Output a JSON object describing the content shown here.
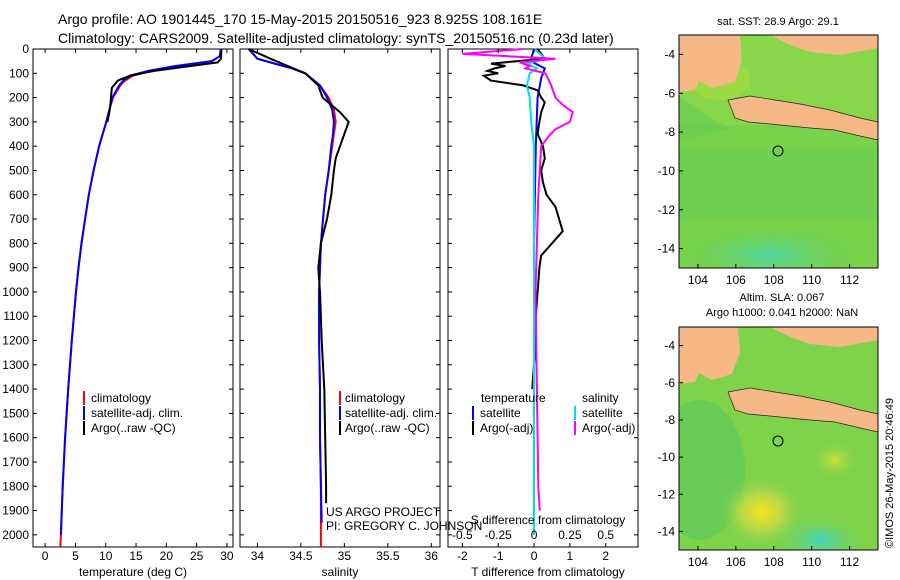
{
  "header": {
    "title_line1": "Argo profile: AO 1901445_170 15-May-2015 20150516_923 8.925S 108.161E",
    "title_line2": "Climatology: CARS2009. Satellite-adjusted climatology: synTS_20150516.nc (0.23d later)"
  },
  "colors": {
    "climatology": "#ff0000",
    "satellite": "#0000ff",
    "argo": "#000000",
    "satellite_salinity": "#00e0e0",
    "argo_salinity": "#ff00ff",
    "land": "#f5b886"
  },
  "chart_data": [
    {
      "type": "line",
      "panel": "temperature",
      "xlabel": "temperature (deg C)",
      "ylabel": "",
      "xlim": [
        -2,
        31
      ],
      "ylim": [
        2050,
        0
      ],
      "xticks": [
        0,
        5,
        10,
        15,
        20,
        25,
        30
      ],
      "yticks": [
        0,
        100,
        200,
        300,
        400,
        500,
        600,
        700,
        800,
        900,
        1000,
        1100,
        1200,
        1300,
        1400,
        1500,
        1600,
        1700,
        1800,
        1900,
        2000
      ],
      "legend": [
        "climatology",
        "satellite-adj. clim.",
        "Argo(..raw -QC)"
      ],
      "series": [
        {
          "name": "climatology",
          "color": "#ff0000",
          "depth": [
            0,
            30,
            50,
            70,
            90,
            110,
            130,
            150,
            200,
            250,
            300,
            400,
            500,
            600,
            700,
            800,
            900,
            1000,
            1200,
            1400,
            1600,
            1800,
            2000,
            2050
          ],
          "values": [
            29.0,
            28.8,
            27.5,
            22.0,
            17.5,
            14.5,
            13.2,
            12.4,
            11.2,
            10.6,
            10.1,
            8.9,
            8.0,
            7.2,
            6.6,
            6.0,
            5.5,
            5.1,
            4.4,
            3.8,
            3.3,
            2.9,
            2.6,
            2.5
          ]
        },
        {
          "name": "satellite-adj. clim.",
          "color": "#0000ff",
          "depth": [
            0,
            30,
            50,
            70,
            90,
            110,
            130,
            150,
            200,
            250,
            300,
            400,
            500,
            600,
            700,
            800,
            900,
            1000,
            1200,
            1400,
            1600,
            1800,
            2000
          ],
          "values": [
            29.0,
            28.8,
            27.5,
            21.5,
            17.0,
            14.0,
            12.9,
            12.2,
            11.1,
            10.6,
            10.1,
            8.9,
            8.0,
            7.2,
            6.6,
            6.0,
            5.5,
            5.1,
            4.4,
            3.8,
            3.3,
            2.9,
            2.6
          ]
        },
        {
          "name": "Argo(..raw -QC)",
          "color": "#000000",
          "depth": [
            0,
            40,
            55,
            70,
            90,
            110,
            130,
            160,
            190,
            220,
            260,
            300
          ],
          "values": [
            29.1,
            29.0,
            28.5,
            24.0,
            18.0,
            14.0,
            12.0,
            11.0,
            10.9,
            10.8,
            10.6,
            10.3
          ]
        }
      ]
    },
    {
      "type": "line",
      "panel": "salinity",
      "xlabel": "salinity",
      "ylabel": "",
      "xlim": [
        33.8,
        36.1
      ],
      "ylim": [
        2050,
        0
      ],
      "xticks": [
        34,
        34.5,
        35,
        35.5,
        36
      ],
      "legend": [
        "climatology",
        "satellite-adj. clim.",
        "Argo(..raw -QC)"
      ],
      "annotation": [
        "US ARGO PROJECT",
        "PI: GREGORY C. JOHNSON"
      ],
      "series": [
        {
          "name": "climatology",
          "color": "#ff0000",
          "depth": [
            0,
            40,
            60,
            80,
            100,
            150,
            200,
            250,
            300,
            350,
            400,
            500,
            600,
            800,
            1000,
            1200,
            1400,
            1600,
            1800,
            2000,
            2050
          ],
          "values": [
            33.9,
            34.0,
            34.2,
            34.4,
            34.55,
            34.72,
            34.82,
            34.88,
            34.9,
            34.88,
            34.86,
            34.82,
            34.78,
            34.73,
            34.71,
            34.71,
            34.72,
            34.72,
            34.73,
            34.73,
            34.73
          ]
        },
        {
          "name": "satellite-adj. clim.",
          "color": "#0000ff",
          "depth": [
            0,
            40,
            60,
            80,
            100,
            150,
            200,
            250,
            300,
            350,
            400,
            500,
            600,
            800,
            1000,
            1200,
            1400,
            1600,
            1800,
            1950
          ],
          "values": [
            33.9,
            34.0,
            34.2,
            34.4,
            34.55,
            34.72,
            34.8,
            34.86,
            34.88,
            34.87,
            34.85,
            34.82,
            34.78,
            34.73,
            34.71,
            34.71,
            34.72,
            34.72,
            34.73,
            34.74
          ]
        },
        {
          "name": "Argo(..raw -QC)",
          "color": "#000000",
          "depth": [
            0,
            40,
            70,
            100,
            150,
            200,
            230,
            260,
            300,
            350,
            400,
            450,
            500,
            600,
            700,
            800,
            900,
            1000,
            1200,
            1400,
            1600,
            1800,
            1870
          ],
          "values": [
            33.9,
            34.15,
            34.35,
            34.55,
            34.7,
            34.75,
            34.85,
            34.95,
            35.05,
            35.0,
            34.95,
            34.9,
            34.88,
            34.85,
            34.8,
            34.73,
            34.7,
            34.72,
            34.74,
            34.77,
            34.78,
            34.79,
            34.79
          ]
        }
      ]
    },
    {
      "type": "line",
      "panel": "difference from climatology",
      "xlabel": "T difference from climatology",
      "xlabel_top": "S difference from climatology",
      "xlim": [
        -2.4,
        2.9
      ],
      "ylim": [
        2050,
        0
      ],
      "xticks_T": [
        -2,
        -1,
        0,
        1,
        2
      ],
      "xticks_S_labels": [
        "-0.5",
        "-0.25",
        "0",
        "0.25",
        "0.5"
      ],
      "xticks_S_values": [
        -0.5,
        -0.25,
        0,
        0.25,
        0.5
      ],
      "legend_titles": [
        "temperature",
        "salinity"
      ],
      "legend": [
        "satellite",
        "Argo(-adj)",
        "satellite",
        "Argo(-adj)"
      ],
      "series": [
        {
          "name": "temperature satellite",
          "color": "#0000ff",
          "depth": [
            0,
            50,
            80,
            120,
            200,
            400,
            800,
            1200,
            1600,
            2000
          ],
          "values": [
            0.0,
            -0.1,
            0.3,
            0.2,
            0.1,
            0.05,
            0.0,
            0.0,
            0.0,
            0.0
          ]
        },
        {
          "name": "temperature Argo(-adj)",
          "color": "#000000",
          "depth": [
            0,
            40,
            60,
            70,
            80,
            90,
            100,
            110,
            130,
            150,
            170,
            200,
            220,
            260,
            300,
            350,
            400,
            450,
            500,
            550,
            600,
            650,
            700,
            750,
            800,
            850,
            900,
            1000,
            1100,
            1200,
            1300,
            1400
          ],
          "values": [
            0.1,
            0.3,
            -1.2,
            -0.8,
            -1.1,
            -1.3,
            -1.0,
            -1.4,
            -1.2,
            -0.3,
            0.1,
            0.2,
            0.3,
            0.2,
            0.15,
            0.1,
            0.25,
            0.3,
            0.2,
            0.25,
            0.35,
            0.6,
            0.7,
            0.8,
            0.5,
            0.2,
            0.15,
            0.1,
            0.05,
            0.05,
            0.0,
            -0.05
          ]
        },
        {
          "name": "salinity satellite",
          "color": "#00e0e0",
          "depth": [
            0,
            40,
            60,
            80,
            100,
            150,
            200,
            300,
            400,
            600,
            800,
            1000,
            1400,
            1800,
            2000
          ],
          "values": [
            0.0,
            0.08,
            -0.05,
            0.02,
            -0.03,
            -0.05,
            -0.03,
            -0.02,
            0.0,
            0.0,
            0.0,
            0.0,
            0.0,
            0.0,
            0.0
          ]
        },
        {
          "name": "salinity Argo(-adj)",
          "color": "#ff00ff",
          "depth": [
            0,
            20,
            40,
            55,
            70,
            80,
            100,
            150,
            200,
            230,
            260,
            300,
            330,
            360,
            400,
            500,
            600,
            800,
            1000,
            1400,
            1800,
            1900
          ],
          "values": [
            -0.08,
            -0.5,
            0.15,
            -0.1,
            -0.03,
            -0.06,
            0.08,
            0.12,
            0.15,
            0.2,
            0.27,
            0.25,
            0.15,
            0.1,
            0.05,
            0.04,
            0.03,
            0.02,
            0.01,
            0.02,
            0.03,
            0.04
          ]
        }
      ]
    },
    {
      "type": "heatmap",
      "panel": "map-sst",
      "title": "sat. SST: 28.9 Argo: 29.1",
      "xticks": [
        104,
        106,
        108,
        110,
        112
      ],
      "yticks": [
        -4,
        -6,
        -8,
        -10,
        -12,
        -14
      ],
      "xlim": [
        103,
        113.5
      ],
      "ylim": [
        -15,
        -3
      ],
      "profile_location": {
        "lon": 108.161,
        "lat": -8.925
      }
    },
    {
      "type": "heatmap",
      "panel": "map-sla",
      "title_line1": "Altim. SLA: 0.067",
      "title_line2": "Argo h1000: 0.041 h2000: NaN",
      "xticks": [
        104,
        106,
        108,
        110,
        112
      ],
      "yticks": [
        -4,
        -6,
        -8,
        -10,
        -12,
        -14
      ],
      "xlim": [
        103,
        113.5
      ],
      "ylim": [
        -15,
        -3
      ],
      "profile_location": {
        "lon": 108.161,
        "lat": -8.925
      }
    }
  ],
  "footer": {
    "imos_stamp": "©IMOS 26-May-2015 20:46:49"
  }
}
